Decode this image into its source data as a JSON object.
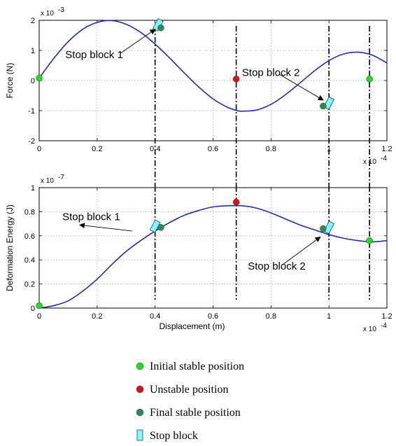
{
  "chart_data": [
    {
      "type": "line",
      "ylabel": "Force (N)",
      "xlabel": "",
      "xlim": [
        0,
        1.2
      ],
      "ylim": [
        -2,
        2
      ],
      "xticks": [
        "0",
        "0.2",
        "0.4",
        "0.6",
        "0.8",
        "1",
        "1.2"
      ],
      "yticks": [
        "-2",
        "-1",
        "0",
        "1",
        "2"
      ],
      "x_scale_label": "x 10",
      "x_scale_exp": "-4",
      "y_scale_label": "x 10",
      "y_scale_exp": "-3",
      "grid": true,
      "curve": {
        "x": [
          0,
          0.05,
          0.1,
          0.15,
          0.2,
          0.25,
          0.3,
          0.35,
          0.4,
          0.45,
          0.5,
          0.55,
          0.6,
          0.65,
          0.68,
          0.7,
          0.75,
          0.8,
          0.85,
          0.9,
          0.95,
          1.0,
          1.05,
          1.1,
          1.15,
          1.2
        ],
        "y": [
          0.08,
          0.73,
          1.29,
          1.7,
          1.93,
          1.99,
          1.87,
          1.6,
          1.21,
          0.75,
          0.26,
          -0.21,
          -0.61,
          -0.89,
          -0.99,
          -1.02,
          -0.98,
          -0.79,
          -0.47,
          -0.08,
          0.32,
          0.66,
          0.88,
          0.94,
          0.84,
          0.58
        ]
      },
      "dashed_lines_x": [
        0.4,
        0.68,
        1.0,
        1.14
      ],
      "points": [
        {
          "x": 0.0,
          "y": 0.08,
          "kind": "initial"
        },
        {
          "x": 0.68,
          "y": 0.05,
          "kind": "unstable"
        },
        {
          "x": 1.14,
          "y": 0.05,
          "kind": "initial"
        },
        {
          "x": 0.42,
          "y": 1.75,
          "kind": "final"
        },
        {
          "x": 0.98,
          "y": -0.85,
          "kind": "final"
        }
      ],
      "stop_blocks": [
        {
          "x": 0.41,
          "y": 1.85
        },
        {
          "x": 1.0,
          "y": -0.75
        }
      ],
      "annotations": [
        {
          "text": "Stop block 1",
          "x": 0.09,
          "y": 0.75,
          "arrow_from": [
            0.28,
            0.9
          ],
          "arrow_to": [
            0.4,
            1.7
          ]
        },
        {
          "text": "Stop block 2",
          "x": 0.7,
          "y": 0.15,
          "arrow_from": [
            0.83,
            0.2
          ],
          "arrow_to": [
            0.98,
            -0.65
          ]
        }
      ]
    },
    {
      "type": "line",
      "ylabel": "Deformation Energy (J)",
      "xlabel": "Displacement (m)",
      "xlim": [
        0,
        1.2
      ],
      "ylim": [
        0,
        1
      ],
      "xticks": [
        "0",
        "0.2",
        "0.4",
        "0.6",
        "0.8",
        "1",
        "1.2"
      ],
      "yticks": [
        "0",
        "0.2",
        "0.4",
        "0.6",
        "0.8",
        "1"
      ],
      "x_scale_label": "x 10",
      "x_scale_exp": "-4",
      "y_scale_label": "x 10",
      "y_scale_exp": "-7",
      "grid": true,
      "curve": {
        "x": [
          0,
          0.05,
          0.1,
          0.15,
          0.2,
          0.25,
          0.3,
          0.35,
          0.4,
          0.45,
          0.5,
          0.55,
          0.6,
          0.65,
          0.7,
          0.75,
          0.8,
          0.85,
          0.9,
          0.95,
          1.0,
          1.05,
          1.1,
          1.15,
          1.2
        ],
        "y": [
          0.0,
          0.02,
          0.06,
          0.14,
          0.24,
          0.36,
          0.47,
          0.56,
          0.64,
          0.71,
          0.77,
          0.81,
          0.84,
          0.85,
          0.85,
          0.83,
          0.79,
          0.74,
          0.69,
          0.65,
          0.61,
          0.58,
          0.56,
          0.55,
          0.56
        ]
      },
      "dashed_lines_x": [
        0.4,
        0.68,
        1.0,
        1.14
      ],
      "points": [
        {
          "x": 0.0,
          "y": 0.02,
          "kind": "initial"
        },
        {
          "x": 0.68,
          "y": 0.88,
          "kind": "unstable"
        },
        {
          "x": 1.14,
          "y": 0.56,
          "kind": "initial"
        },
        {
          "x": 0.42,
          "y": 0.67,
          "kind": "final"
        },
        {
          "x": 0.98,
          "y": 0.66,
          "kind": "final"
        }
      ],
      "stop_blocks": [
        {
          "x": 0.4,
          "y": 0.68
        },
        {
          "x": 1.0,
          "y": 0.67
        }
      ],
      "annotations": [
        {
          "text": "Stop block 1",
          "x": 0.08,
          "y": 0.73,
          "arrow_from": [
            0.32,
            0.64
          ],
          "arrow_to": [
            0.14,
            0.69
          ]
        },
        {
          "text": "Stop block 2",
          "x": 0.72,
          "y": 0.32,
          "arrow_from": [
            0.84,
            0.36
          ],
          "arrow_to": [
            0.97,
            0.59
          ]
        }
      ]
    }
  ],
  "legend": {
    "items": [
      {
        "label": "Initial stable position",
        "kind": "initial"
      },
      {
        "label": "Unstable position",
        "kind": "unstable"
      },
      {
        "label": "Final stable position",
        "kind": "final"
      },
      {
        "label": "Stop block",
        "kind": "block"
      }
    ]
  },
  "colors": {
    "curve": "#1f2fa8",
    "initial": "#22dd22",
    "unstable": "#dd1111",
    "final": "#2e8b57",
    "block": "#7fffff",
    "grid": "#9a9a9a"
  }
}
